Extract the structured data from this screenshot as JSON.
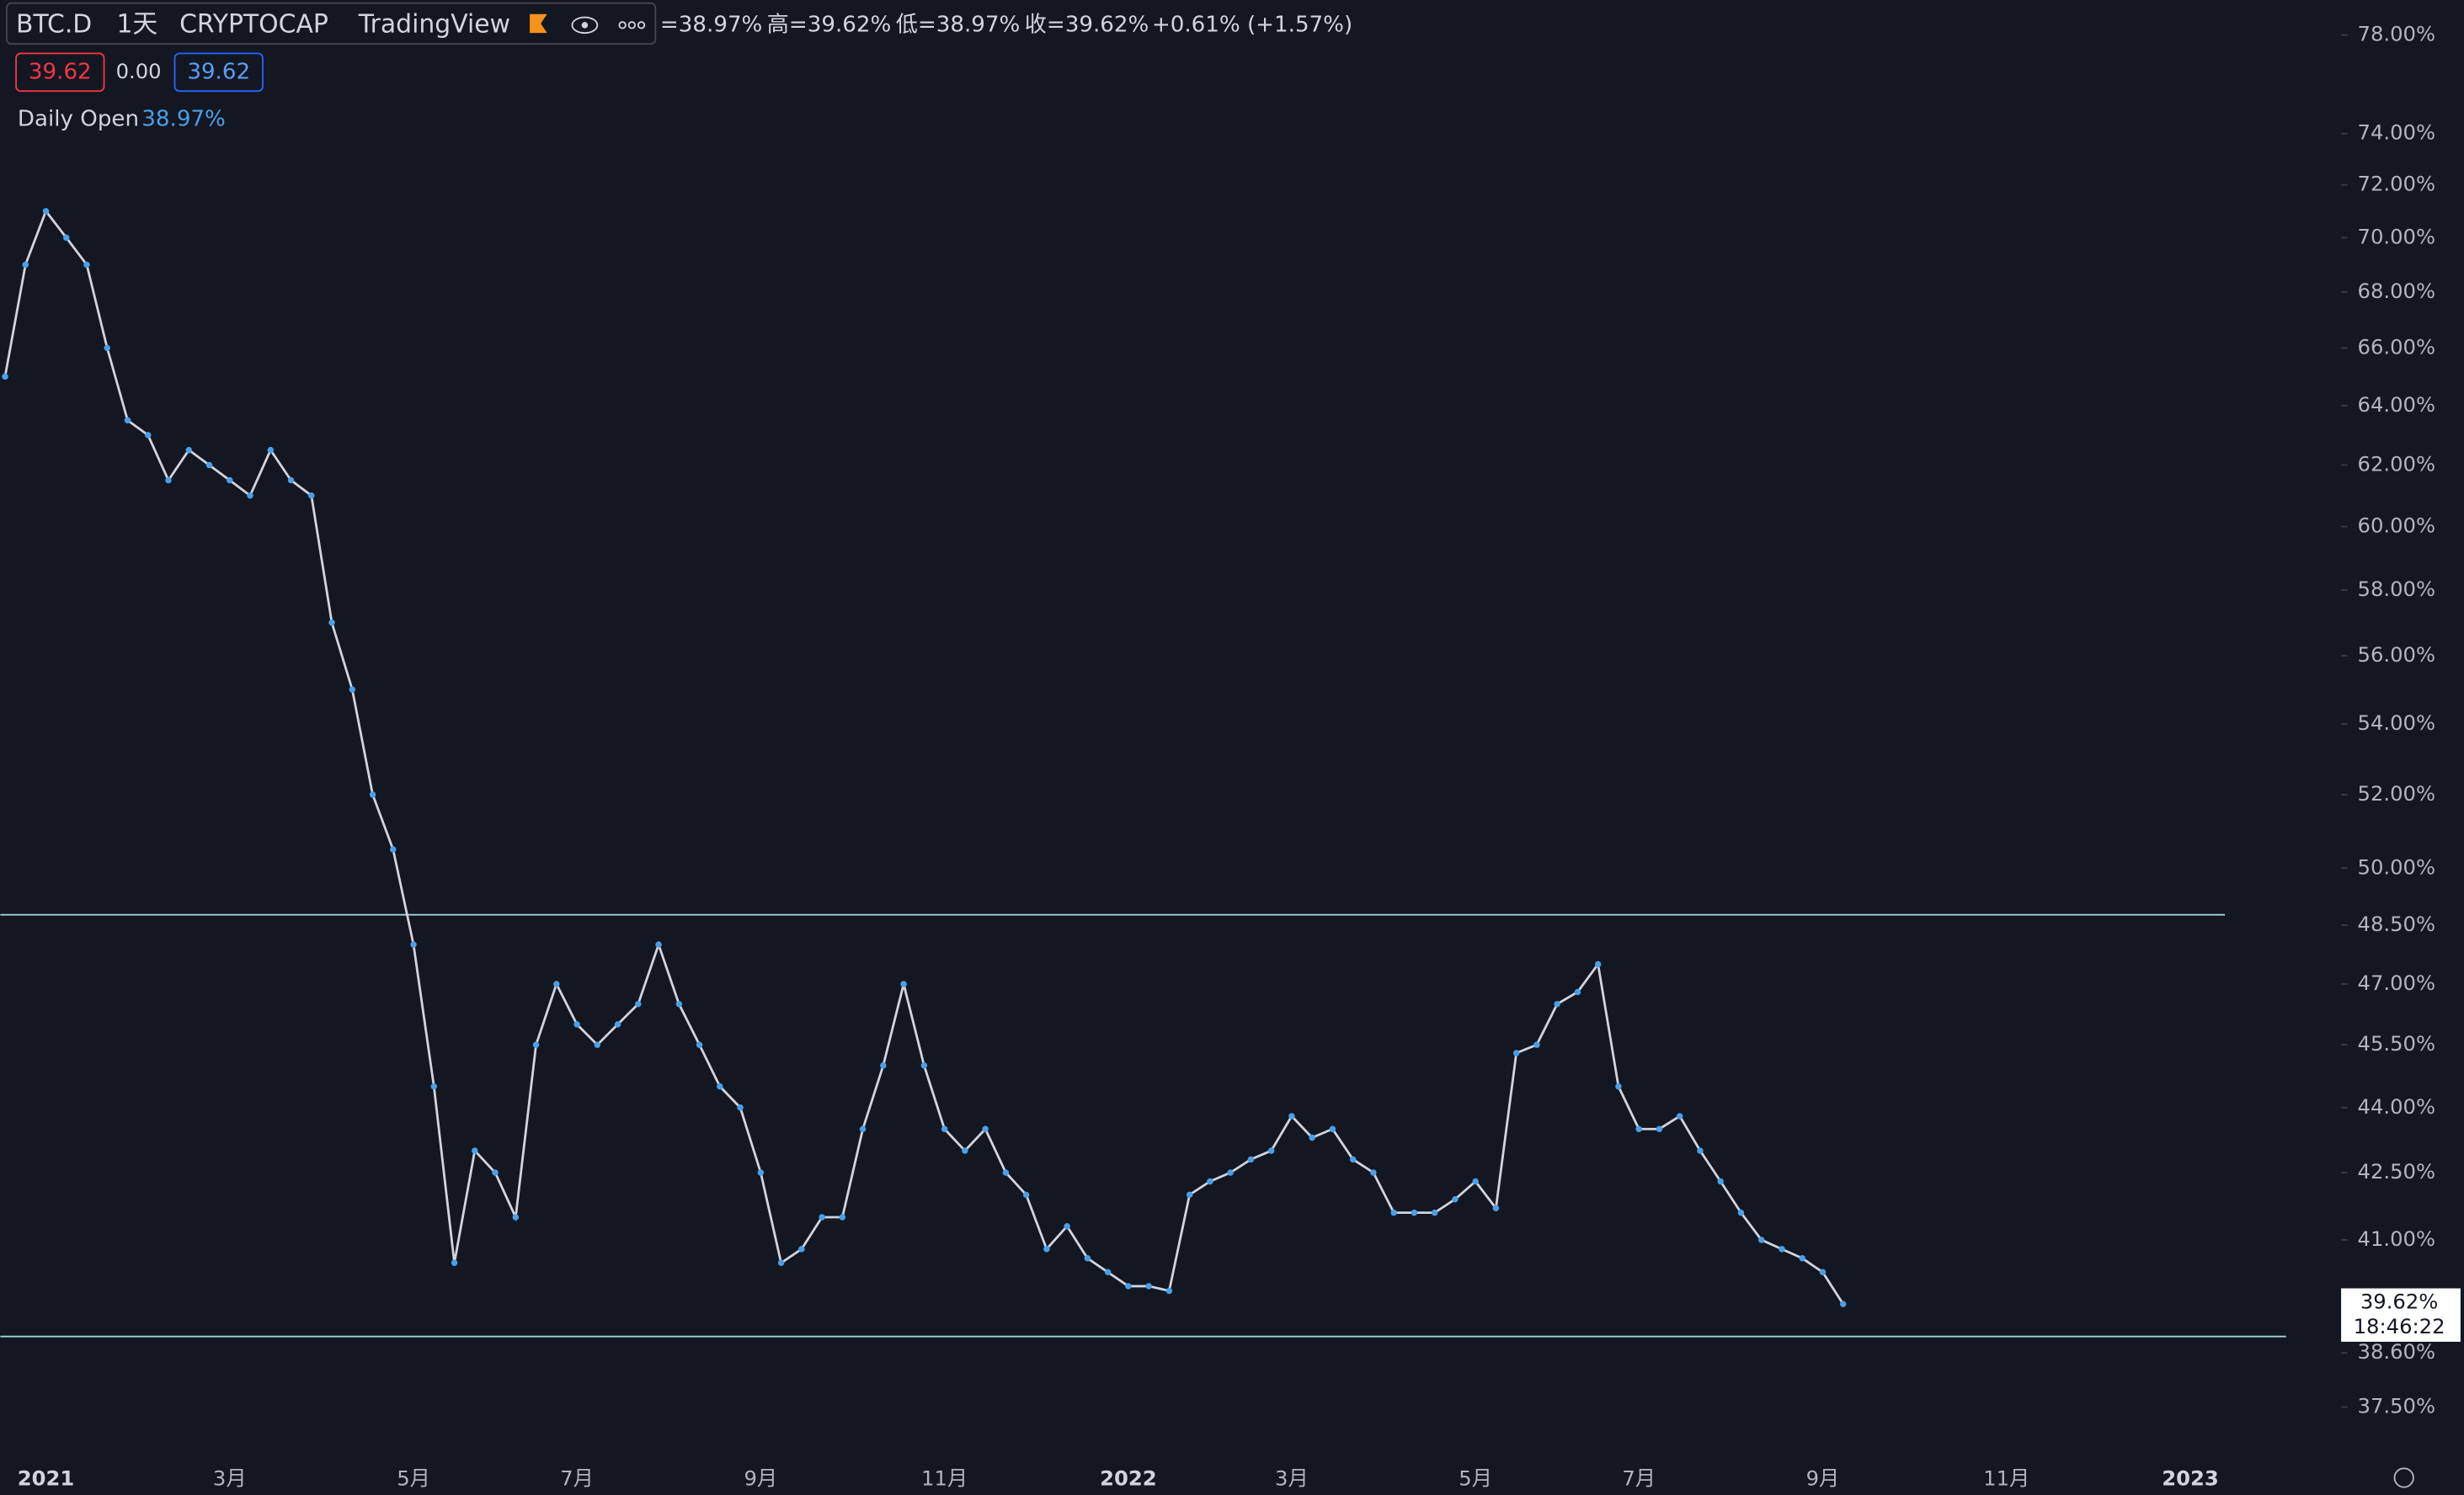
{
  "header": {
    "symbol": "BTC.D",
    "interval": "1天",
    "exchange": "CRYPTOCAP",
    "source": "TradingView",
    "ohlc": [
      "=38.97%",
      "高=39.62%",
      "低=38.97%",
      "收=39.62%",
      "+0.61% (+1.57%)"
    ],
    "badges": [
      "39.62",
      "0.00",
      "39.62"
    ],
    "indicator": {
      "name": "Daily Open",
      "value": "38.97%"
    }
  },
  "chart_data": {
    "type": "line",
    "color": "#d1d4dc",
    "marker_color": "#4a9fe8",
    "log_y": true,
    "categories": [
      null,
      null,
      "2021",
      null,
      null,
      null,
      null,
      null,
      null,
      null,
      null,
      "3月",
      null,
      null,
      null,
      null,
      null,
      null,
      null,
      null,
      "5月",
      null,
      null,
      null,
      null,
      null,
      null,
      null,
      "7月",
      null,
      null,
      null,
      null,
      null,
      null,
      null,
      null,
      "9月",
      null,
      null,
      null,
      null,
      null,
      null,
      null,
      null,
      "11月",
      null,
      null,
      null,
      null,
      null,
      null,
      null,
      null,
      "2022",
      null,
      null,
      null,
      null,
      null,
      null,
      null,
      "3月",
      null,
      null,
      null,
      null,
      null,
      null,
      null,
      null,
      "5月",
      null,
      null,
      null,
      null,
      null,
      null,
      null,
      "7月",
      null,
      null,
      null,
      null,
      null,
      null,
      null,
      null,
      "9月",
      null,
      null,
      null,
      null,
      null,
      null,
      null,
      null,
      "11月",
      null,
      null,
      null,
      null,
      null,
      null,
      null,
      null,
      "2023",
      null,
      null,
      null,
      null,
      null,
      null,
      null
    ],
    "values": [
      65,
      69,
      71,
      70,
      69,
      66,
      63.5,
      63,
      61.5,
      62.5,
      62,
      61.5,
      61,
      62.5,
      61.5,
      61,
      57,
      55,
      52,
      50.5,
      48,
      44.5,
      40.5,
      43,
      42.5,
      41.5,
      45.5,
      47,
      46,
      45.5,
      46,
      46.5,
      48,
      46.5,
      45.5,
      44.5,
      44,
      42.5,
      40.5,
      40.8,
      41.5,
      41.5,
      43.5,
      45,
      47,
      45,
      43.5,
      43,
      43.5,
      42.5,
      42,
      40.8,
      41.3,
      40.6,
      40.3,
      40,
      40,
      39.9,
      42,
      42.3,
      42.5,
      42.8,
      43,
      43.8,
      43.3,
      43.5,
      42.8,
      42.5,
      41.6,
      41.6,
      41.6,
      41.9,
      42.3,
      41.7,
      45.3,
      45.5,
      46.5,
      46.8,
      47.5,
      44.5,
      43.5,
      43.5,
      43.8,
      43,
      42.3,
      41.6,
      41,
      40.8,
      40.6,
      40.3,
      39.62,
      null,
      null,
      null,
      null,
      null,
      null,
      null,
      null,
      null,
      null,
      null,
      null,
      null,
      null,
      null,
      null,
      null,
      null,
      null,
      null,
      null,
      null,
      null,
      null
    ],
    "ylim": [
      36.6,
      79.47
    ],
    "yticks": [
      {
        "value": 78,
        "label": "78.00%"
      },
      {
        "value": 74,
        "label": "74.00%"
      },
      {
        "value": 72,
        "label": "72.00%"
      },
      {
        "value": 70,
        "label": "70.00%"
      },
      {
        "value": 68,
        "label": "68.00%"
      },
      {
        "value": 66,
        "label": "66.00%"
      },
      {
        "value": 64,
        "label": "64.00%"
      },
      {
        "value": 62,
        "label": "62.00%"
      },
      {
        "value": 60,
        "label": "60.00%"
      },
      {
        "value": 58,
        "label": "58.00%"
      },
      {
        "value": 56,
        "label": "56.00%"
      },
      {
        "value": 54,
        "label": "54.00%"
      },
      {
        "value": 52,
        "label": "52.00%"
      },
      {
        "value": 50,
        "label": "50.00%"
      },
      {
        "value": 48.5,
        "label": "48.50%"
      },
      {
        "value": 47,
        "label": "47.00%"
      },
      {
        "value": 45.5,
        "label": "45.50%"
      },
      {
        "value": 44,
        "label": "44.00%"
      },
      {
        "value": 42.5,
        "label": "42.50%"
      },
      {
        "value": 41,
        "label": "41.00%"
      },
      {
        "value": 38.6,
        "label": "38.60%"
      },
      {
        "value": 37.5,
        "label": "37.50%"
      }
    ],
    "hlines": [
      48.77,
      38.94
    ],
    "hline_color": "#9ed3df",
    "price_label": "39.62%",
    "countdown": "18:46:22"
  }
}
